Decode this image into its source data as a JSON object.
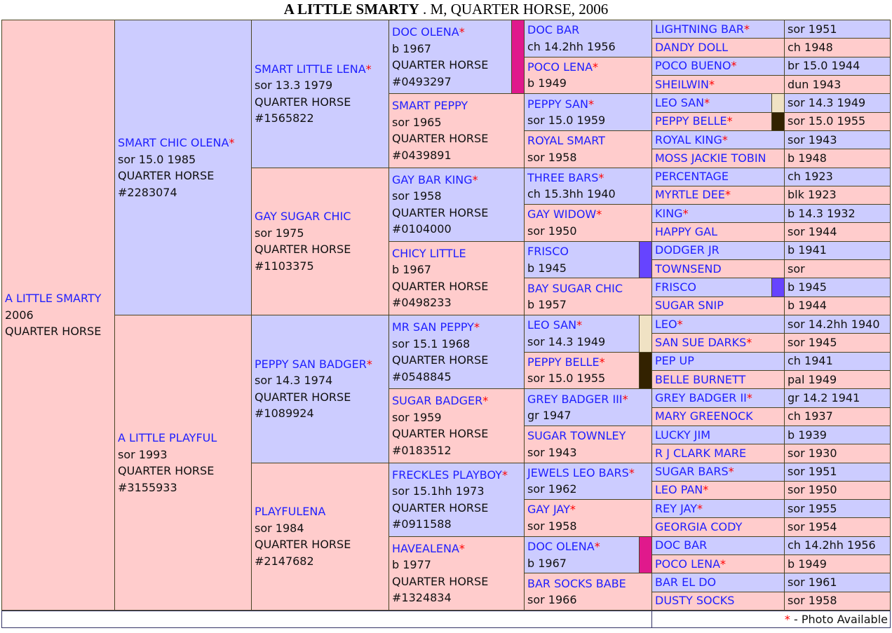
{
  "title": {
    "name": "A LITTLE SMARTY",
    "rest": " . M, QUARTER HORSE, 2006"
  },
  "colors": {
    "sire": "#ccccff",
    "dam": "#ffcccc",
    "link": "#2020ff",
    "star": "#ff0000",
    "border": "#4a4423"
  },
  "legend": {
    "marker": "*",
    "text": " - Photo Available"
  },
  "bar_colors": {
    "magenta": "#e0198c",
    "purple": "#6644ff",
    "cream": "#f0e2c4",
    "dark": "#332200"
  },
  "pedigree": {
    "gen1": [
      {
        "name": "A LITTLE SMARTY",
        "photo": false,
        "lines": [
          "2006",
          "QUARTER HORSE"
        ]
      }
    ],
    "gen2": [
      {
        "name": "SMART CHIC OLENA",
        "photo": true,
        "lines": [
          "sor 15.0 1985",
          "QUARTER HORSE",
          "#2283074"
        ]
      },
      {
        "name": "A LITTLE PLAYFUL",
        "photo": false,
        "lines": [
          "sor 1993",
          "QUARTER HORSE",
          "#3155933"
        ]
      }
    ],
    "gen3": [
      {
        "name": "SMART LITTLE LENA",
        "photo": true,
        "lines": [
          "sor 13.3 1979",
          "QUARTER HORSE",
          "#1565822"
        ]
      },
      {
        "name": "GAY SUGAR CHIC",
        "photo": false,
        "lines": [
          "sor 1975",
          "QUARTER HORSE",
          "#1103375"
        ]
      },
      {
        "name": "PEPPY SAN BADGER",
        "photo": true,
        "lines": [
          "sor 14.3 1974",
          "QUARTER HORSE",
          "#1089924"
        ]
      },
      {
        "name": "PLAYFULENA",
        "photo": false,
        "lines": [
          "sor 1984",
          "QUARTER HORSE",
          "#2147682"
        ]
      }
    ],
    "gen4": [
      {
        "name": "DOC OLENA",
        "photo": true,
        "lines": [
          "b 1967",
          "QUARTER HORSE",
          "#0493297"
        ],
        "bar": "magenta"
      },
      {
        "name": "SMART PEPPY",
        "photo": false,
        "lines": [
          "sor 1965",
          "QUARTER HORSE",
          "#0439891"
        ]
      },
      {
        "name": "GAY BAR KING",
        "photo": true,
        "lines": [
          "sor 1958",
          "QUARTER HORSE",
          "#0104000"
        ]
      },
      {
        "name": "CHICY LITTLE",
        "photo": false,
        "lines": [
          "b 1967",
          "QUARTER HORSE",
          "#0498233"
        ]
      },
      {
        "name": "MR SAN PEPPY",
        "photo": true,
        "lines": [
          "sor 15.1 1968",
          "QUARTER HORSE",
          "#0548845"
        ]
      },
      {
        "name": "SUGAR BADGER",
        "photo": true,
        "lines": [
          "sor 1959",
          "QUARTER HORSE",
          "#0183512"
        ]
      },
      {
        "name": "FRECKLES PLAYBOY",
        "photo": true,
        "lines": [
          "sor 15.1hh 1973",
          "QUARTER HORSE",
          "#0911588"
        ]
      },
      {
        "name": "HAVEALENA",
        "photo": true,
        "lines": [
          "b 1977",
          "QUARTER HORSE",
          "#1324834"
        ]
      }
    ],
    "gen5": [
      {
        "name": "DOC BAR",
        "photo": false,
        "lines": [
          "ch 14.2hh 1956"
        ]
      },
      {
        "name": "POCO LENA",
        "photo": true,
        "lines": [
          "b 1949"
        ]
      },
      {
        "name": "PEPPY SAN",
        "photo": true,
        "lines": [
          "sor 15.0 1959"
        ]
      },
      {
        "name": "ROYAL SMART",
        "photo": false,
        "lines": [
          "sor 1958"
        ]
      },
      {
        "name": "THREE BARS",
        "photo": true,
        "lines": [
          "ch 15.3hh 1940"
        ]
      },
      {
        "name": "GAY WIDOW",
        "photo": true,
        "lines": [
          "sor 1950"
        ]
      },
      {
        "name": "FRISCO",
        "photo": false,
        "lines": [
          "b 1945"
        ],
        "bar": "purple"
      },
      {
        "name": "BAY SUGAR CHIC",
        "photo": false,
        "lines": [
          "b 1957"
        ]
      },
      {
        "name": "LEO SAN",
        "photo": true,
        "lines": [
          "sor 14.3 1949"
        ],
        "bar": "cream"
      },
      {
        "name": "PEPPY BELLE",
        "photo": true,
        "lines": [
          "sor 15.0 1955"
        ],
        "bar": "dark"
      },
      {
        "name": "GREY BADGER III",
        "photo": true,
        "lines": [
          "gr 1947"
        ]
      },
      {
        "name": "SUGAR TOWNLEY",
        "photo": false,
        "lines": [
          "sor 1943"
        ]
      },
      {
        "name": "JEWELS LEO BARS",
        "photo": true,
        "lines": [
          "sor 1962"
        ]
      },
      {
        "name": "GAY JAY",
        "photo": true,
        "lines": [
          "sor 1958"
        ]
      },
      {
        "name": "DOC OLENA",
        "photo": true,
        "lines": [
          "b 1967"
        ],
        "bar": "magenta"
      },
      {
        "name": "BAR SOCKS BABE",
        "photo": false,
        "lines": [
          "sor 1966"
        ]
      }
    ],
    "gen6": [
      {
        "name": "LIGHTNING BAR",
        "photo": true,
        "info": "sor 1951"
      },
      {
        "name": "DANDY DOLL",
        "photo": false,
        "info": "ch 1948"
      },
      {
        "name": "POCO BUENO",
        "photo": true,
        "info": "br 15.0 1944"
      },
      {
        "name": "SHEILWIN",
        "photo": true,
        "info": "dun 1943"
      },
      {
        "name": "LEO SAN",
        "photo": true,
        "info": "sor 14.3 1949",
        "bar": "cream"
      },
      {
        "name": "PEPPY BELLE",
        "photo": true,
        "info": "sor 15.0 1955",
        "bar": "dark"
      },
      {
        "name": "ROYAL KING",
        "photo": true,
        "info": "sor 1943"
      },
      {
        "name": "MOSS JACKIE TOBIN",
        "photo": false,
        "info": "b 1948"
      },
      {
        "name": "PERCENTAGE",
        "photo": false,
        "info": "ch 1923"
      },
      {
        "name": "MYRTLE DEE",
        "photo": true,
        "info": "blk 1923"
      },
      {
        "name": "KING",
        "photo": true,
        "info": "b 14.3 1932"
      },
      {
        "name": "HAPPY GAL",
        "photo": false,
        "info": "sor 1944"
      },
      {
        "name": "DODGER JR",
        "photo": false,
        "info": "b 1941"
      },
      {
        "name": "TOWNSEND",
        "photo": false,
        "info": "sor"
      },
      {
        "name": "FRISCO",
        "photo": false,
        "info": "b 1945",
        "bar": "purple"
      },
      {
        "name": "SUGAR SNIP",
        "photo": false,
        "info": "b 1944"
      },
      {
        "name": "LEO",
        "photo": true,
        "info": "sor 14.2hh 1940"
      },
      {
        "name": "SAN SUE DARKS",
        "photo": true,
        "info": "sor 1945"
      },
      {
        "name": "PEP UP",
        "photo": false,
        "info": "ch 1941"
      },
      {
        "name": "BELLE BURNETT",
        "photo": false,
        "info": "pal 1949"
      },
      {
        "name": "GREY BADGER II",
        "photo": true,
        "info": "gr 14.2 1941"
      },
      {
        "name": "MARY GREENOCK",
        "photo": false,
        "info": "ch 1937"
      },
      {
        "name": "LUCKY JIM",
        "photo": false,
        "info": "b 1939"
      },
      {
        "name": "R J CLARK MARE",
        "photo": false,
        "info": "sor 1930"
      },
      {
        "name": "SUGAR BARS",
        "photo": true,
        "info": "sor 1951"
      },
      {
        "name": "LEO PAN",
        "photo": true,
        "info": "sor 1950"
      },
      {
        "name": "REY JAY",
        "photo": true,
        "info": "sor 1955"
      },
      {
        "name": "GEORGIA CODY",
        "photo": false,
        "info": "sor 1954"
      },
      {
        "name": "DOC BAR",
        "photo": false,
        "info": "ch 14.2hh 1956"
      },
      {
        "name": "POCO LENA",
        "photo": true,
        "info": "b 1949"
      },
      {
        "name": "BAR EL DO",
        "photo": false,
        "info": "sor 1961"
      },
      {
        "name": "DUSTY SOCKS",
        "photo": false,
        "info": "sor 1958"
      }
    ]
  }
}
